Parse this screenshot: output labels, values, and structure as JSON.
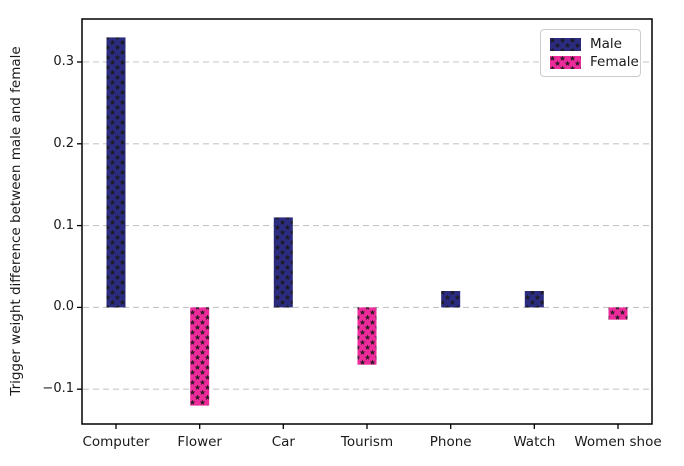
{
  "chart_data": {
    "type": "bar",
    "title": "",
    "xlabel": "",
    "ylabel": "Trigger weight difference between male and female",
    "categories": [
      "Computer",
      "Flower",
      "Car",
      "Tourism",
      "Phone",
      "Watch",
      "Women shoe"
    ],
    "bars": [
      {
        "category": "Computer",
        "series": "Male",
        "value": 0.33
      },
      {
        "category": "Flower",
        "series": "Female",
        "value": -0.12
      },
      {
        "category": "Car",
        "series": "Male",
        "value": 0.11
      },
      {
        "category": "Tourism",
        "series": "Female",
        "value": -0.07
      },
      {
        "category": "Phone",
        "series": "Male",
        "value": 0.02
      },
      {
        "category": "Watch",
        "series": "Male",
        "value": 0.02
      },
      {
        "category": "Women shoe",
        "series": "Female",
        "value": -0.015
      }
    ],
    "series": [
      {
        "name": "Male",
        "color": "#2b2b80",
        "hatch": "star"
      },
      {
        "name": "Female",
        "color": "#ee2b9b",
        "hatch": "star"
      }
    ],
    "hatch_color": "#1a1a1a",
    "yticks": [
      {
        "value": 0.3,
        "label": "0.3"
      },
      {
        "value": 0.2,
        "label": "0.2"
      },
      {
        "value": 0.1,
        "label": "0.1"
      },
      {
        "value": 0.0,
        "label": "0.0"
      },
      {
        "value": -0.1,
        "label": "−0.1"
      }
    ],
    "ylim": [
      -0.1425,
      0.3525
    ],
    "grid": "horizontal-dashed",
    "grid_color": "#c6c6c6",
    "legend_position": "upper right"
  }
}
